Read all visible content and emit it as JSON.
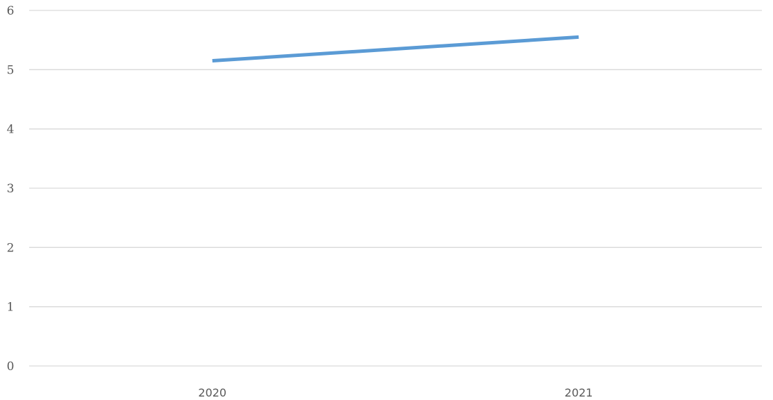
{
  "chart_data": {
    "type": "line",
    "title": "",
    "xlabel": "",
    "ylabel": "",
    "categories": [
      "2020",
      "2021"
    ],
    "series": [
      {
        "values": [
          5.15,
          5.55
        ],
        "color": "#5b9bd5"
      }
    ],
    "ylim": [
      0,
      6
    ],
    "yticks": [
      0,
      1,
      2,
      3,
      4,
      5,
      6
    ],
    "grid": true,
    "legend": "none"
  }
}
